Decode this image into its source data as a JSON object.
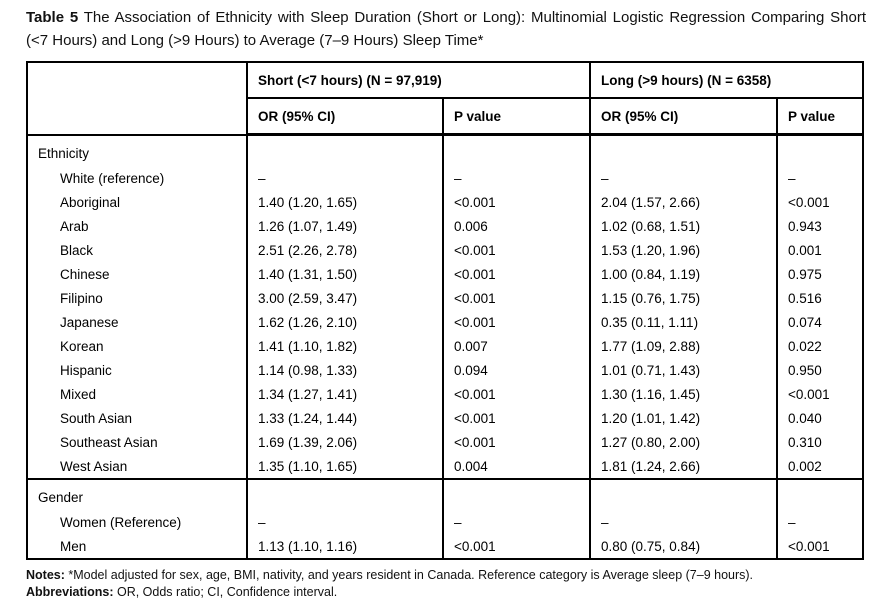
{
  "caption": {
    "label": "Table 5",
    "text": " The Association of Ethnicity with Sleep Duration (Short or Long): Multinomial Logistic Regression Comparing Short (<7 Hours) and Long (>9 Hours) to Average (7–9 Hours) Sleep Time*"
  },
  "table": {
    "group_headers": [
      "Short (<7 hours) (N = 97,919)",
      "Long (>9 hours) (N = 6358)"
    ],
    "sub_headers": [
      "OR (95% CI)",
      "P value",
      "OR (95% CI)",
      "P value"
    ],
    "sections": [
      {
        "name": "Ethnicity",
        "rows": [
          {
            "label": "White (reference)",
            "cells": [
              "–",
              "–",
              "–",
              "–"
            ]
          },
          {
            "label": "Aboriginal",
            "cells": [
              "1.40 (1.20, 1.65)",
              "<0.001",
              "2.04 (1.57, 2.66)",
              "<0.001"
            ]
          },
          {
            "label": "Arab",
            "cells": [
              "1.26 (1.07, 1.49)",
              "0.006",
              "1.02 (0.68, 1.51)",
              "0.943"
            ]
          },
          {
            "label": "Black",
            "cells": [
              "2.51 (2.26, 2.78)",
              "<0.001",
              "1.53 (1.20, 1.96)",
              "0.001"
            ]
          },
          {
            "label": "Chinese",
            "cells": [
              "1.40 (1.31, 1.50)",
              "<0.001",
              "1.00 (0.84, 1.19)",
              "0.975"
            ]
          },
          {
            "label": "Filipino",
            "cells": [
              "3.00 (2.59, 3.47)",
              "<0.001",
              "1.15 (0.76, 1.75)",
              "0.516"
            ]
          },
          {
            "label": "Japanese",
            "cells": [
              "1.62 (1.26, 2.10)",
              "<0.001",
              "0.35 (0.11, 1.11)",
              "0.074"
            ]
          },
          {
            "label": "Korean",
            "cells": [
              "1.41 (1.10, 1.82)",
              "0.007",
              "1.77 (1.09, 2.88)",
              "0.022"
            ]
          },
          {
            "label": "Hispanic",
            "cells": [
              "1.14 (0.98, 1.33)",
              "0.094",
              "1.01 (0.71, 1.43)",
              "0.950"
            ]
          },
          {
            "label": "Mixed",
            "cells": [
              "1.34 (1.27, 1.41)",
              "<0.001",
              "1.30 (1.16, 1.45)",
              "<0.001"
            ]
          },
          {
            "label": "South Asian",
            "cells": [
              "1.33 (1.24, 1.44)",
              "<0.001",
              "1.20 (1.01, 1.42)",
              "0.040"
            ]
          },
          {
            "label": "Southeast Asian",
            "cells": [
              "1.69 (1.39, 2.06)",
              "<0.001",
              "1.27 (0.80, 2.00)",
              "0.310"
            ]
          },
          {
            "label": "West Asian",
            "cells": [
              "1.35 (1.10, 1.65)",
              "0.004",
              "1.81 (1.24, 2.66)",
              "0.002"
            ]
          }
        ]
      },
      {
        "name": "Gender",
        "rows": [
          {
            "label": "Women (Reference)",
            "cells": [
              "–",
              "–",
              "–",
              "–"
            ]
          },
          {
            "label": "Men",
            "cells": [
              "1.13 (1.10, 1.16)",
              "<0.001",
              "0.80 (0.75, 0.84)",
              "<0.001"
            ]
          }
        ]
      }
    ]
  },
  "notes": {
    "notes_label": "Notes:",
    "notes_text": " *Model adjusted for sex, age, BMI, nativity, and years resident in Canada. Reference category is Average sleep (7–9 hours).",
    "abbr_label": "Abbreviations:",
    "abbr_text": " OR, Odds ratio; CI, Confidence interval."
  }
}
